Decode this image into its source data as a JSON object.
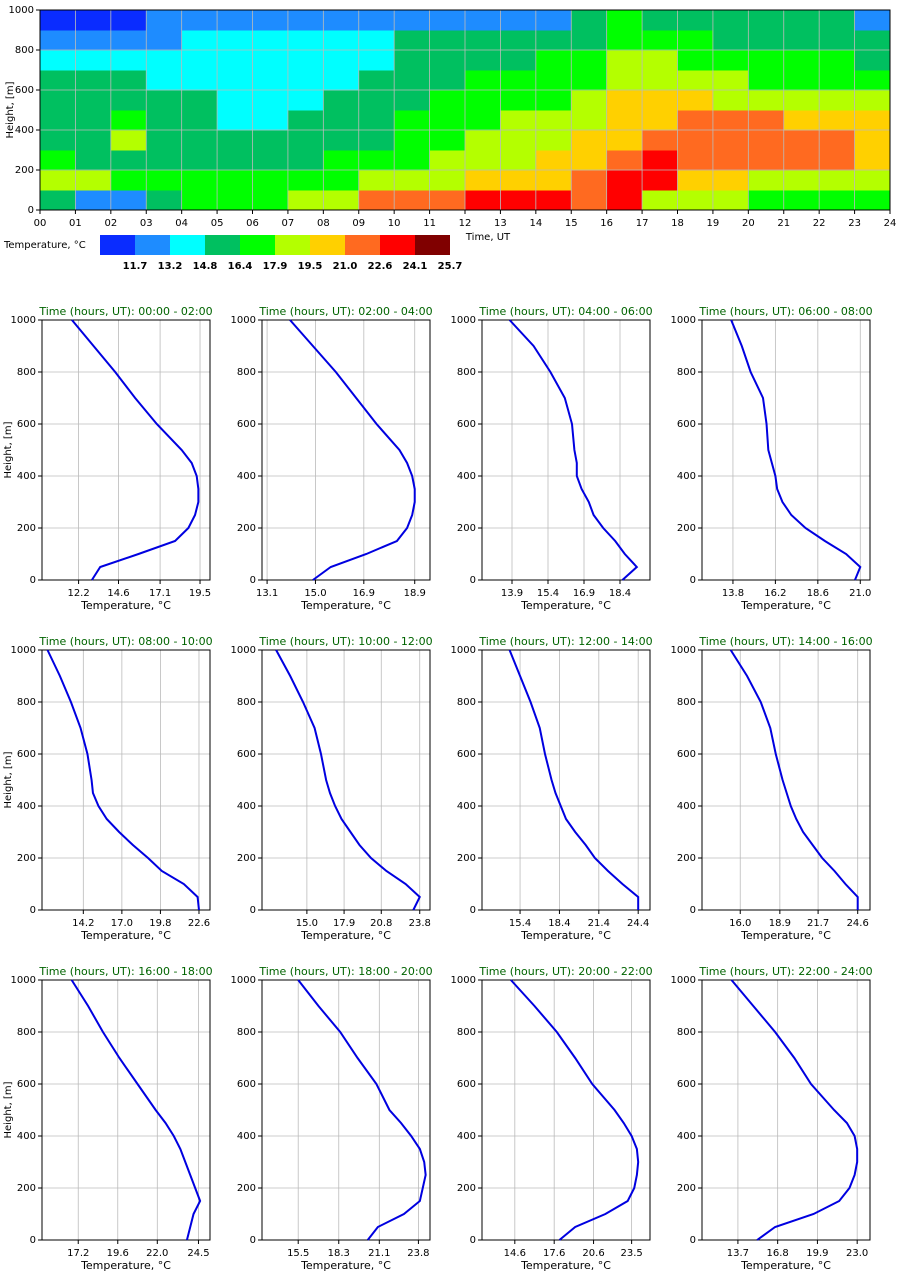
{
  "chart_data": [
    {
      "type": "heatmap",
      "xlabel": "Time, UT",
      "ylabel": "Height, [m]",
      "xlim": [
        0,
        24
      ],
      "ylim": [
        0,
        1000
      ],
      "xticks": [
        {
          "value": 0,
          "label": "00"
        },
        {
          "value": 1,
          "label": "01"
        },
        {
          "value": 2,
          "label": "02"
        },
        {
          "value": 3,
          "label": "03"
        },
        {
          "value": 4,
          "label": "04"
        },
        {
          "value": 5,
          "label": "05"
        },
        {
          "value": 6,
          "label": "06"
        },
        {
          "value": 7,
          "label": "07"
        },
        {
          "value": 8,
          "label": "08"
        },
        {
          "value": 9,
          "label": "09"
        },
        10,
        11,
        12,
        13,
        14,
        15,
        16,
        17,
        18,
        19,
        20,
        21,
        22,
        23,
        24
      ],
      "yticks": [
        0,
        200,
        400,
        600,
        800,
        1000
      ],
      "grid": true,
      "values": [
        [
          15.6,
          12.5,
          12.5,
          15.6,
          17.2,
          17.2,
          17.2,
          18.7,
          18.7,
          21.8,
          21.8,
          21.8,
          23.3,
          23.3,
          23.3,
          21.8,
          23.3,
          18.7,
          18.7,
          18.7,
          17.2,
          17.2,
          17.2,
          17.2
        ],
        [
          18.7,
          18.7,
          17.2,
          17.2,
          17.2,
          17.2,
          17.2,
          17.2,
          17.2,
          18.7,
          18.7,
          18.7,
          20.3,
          20.3,
          20.3,
          21.8,
          23.3,
          23.3,
          20.3,
          20.3,
          18.7,
          18.7,
          18.7,
          18.7
        ],
        [
          17.2,
          15.6,
          15.6,
          15.6,
          15.6,
          15.6,
          15.6,
          15.6,
          17.2,
          17.2,
          17.2,
          18.7,
          18.7,
          18.7,
          20.3,
          20.3,
          21.8,
          23.3,
          21.8,
          21.8,
          21.8,
          21.8,
          21.8,
          20.3
        ],
        [
          15.6,
          15.6,
          18.7,
          15.6,
          15.6,
          15.6,
          15.6,
          15.6,
          15.6,
          15.6,
          17.2,
          17.2,
          18.7,
          18.7,
          18.7,
          20.3,
          20.3,
          21.8,
          21.8,
          21.8,
          21.8,
          21.8,
          21.8,
          20.3
        ],
        [
          15.6,
          15.6,
          17.2,
          15.6,
          15.6,
          14,
          14,
          15.6,
          15.6,
          15.6,
          17.2,
          17.2,
          17.2,
          18.7,
          18.7,
          18.7,
          20.3,
          20.3,
          21.8,
          21.8,
          21.8,
          20.3,
          20.3,
          20.3
        ],
        [
          15.6,
          15.6,
          15.6,
          15.6,
          15.6,
          14,
          14,
          14,
          15.6,
          15.6,
          15.6,
          17.2,
          17.2,
          17.2,
          17.2,
          18.7,
          20.3,
          20.3,
          20.3,
          18.7,
          18.7,
          18.7,
          18.7,
          18.7
        ],
        [
          15.6,
          15.6,
          15.6,
          14,
          14,
          14,
          14,
          14,
          14,
          15.6,
          15.6,
          15.6,
          17.2,
          17.2,
          17.2,
          17.2,
          18.7,
          18.7,
          18.7,
          18.7,
          17.2,
          17.2,
          17.2,
          17.2
        ],
        [
          14,
          14,
          14,
          14,
          14,
          14,
          14,
          14,
          14,
          14,
          15.6,
          15.6,
          15.6,
          15.6,
          17.2,
          17.2,
          18.7,
          18.7,
          17.2,
          17.2,
          17.2,
          17.2,
          17.2,
          15.6
        ],
        [
          12.5,
          12.5,
          12.5,
          12.5,
          14,
          14,
          14,
          14,
          14,
          14,
          15.6,
          15.6,
          15.6,
          15.6,
          15.6,
          15.6,
          17.2,
          17.2,
          17.2,
          15.6,
          15.6,
          15.6,
          15.6,
          15.6
        ],
        [
          11,
          11,
          11,
          12.5,
          12.5,
          12.5,
          12.5,
          12.5,
          12.5,
          12.5,
          12.5,
          12.5,
          12.5,
          12.5,
          12.5,
          15.6,
          17.2,
          15.6,
          15.6,
          15.6,
          15.6,
          15.6,
          15.6,
          12.5
        ]
      ],
      "colorbar": {
        "label": "Temperature, °C",
        "colors": [
          "#0a2cff",
          "#1e8cff",
          "#00ffff",
          "#00c060",
          "#00ff00",
          "#b4ff00",
          "#ffd000",
          "#ff6a20",
          "#ff0000",
          "#800000"
        ],
        "ticks": [
          11.7,
          13.2,
          14.8,
          16.4,
          17.9,
          19.5,
          {
            "value": 21,
            "label": "21.0"
          },
          22.6,
          24.1,
          25.7
        ]
      }
    },
    {
      "type": "line",
      "title": "Time (hours, UT): 00:00 - 02:00",
      "xlabel": "Temperature, °C",
      "ylabel": "Height, [m]",
      "xlim": [
        10.0,
        20.1
      ],
      "xticks": [
        12.2,
        14.6,
        17.1,
        19.5
      ],
      "ylim": [
        0,
        1000
      ],
      "yticks": [
        0,
        200,
        400,
        600,
        800,
        1000
      ],
      "grid": true,
      "series": [
        {
          "color": "#0000e0",
          "x": [
            13.0,
            13.5,
            15.8,
            18.0,
            18.8,
            19.2,
            19.4,
            19.4,
            19.3,
            19.0,
            18.4,
            16.9,
            15.6,
            14.4,
            13.1,
            11.8
          ],
          "y": [
            0,
            50,
            100,
            150,
            200,
            250,
            300,
            350,
            400,
            450,
            500,
            600,
            700,
            800,
            900,
            1000
          ]
        }
      ]
    },
    {
      "type": "line",
      "title": "Time (hours, UT): 02:00 - 04:00",
      "xlabel": "Temperature, °C",
      "xlim": [
        12.9,
        19.5
      ],
      "xticks": [
        13.1,
        {
          "value": 15,
          "label": "15.0"
        },
        16.9,
        18.9
      ],
      "ylim": [
        0,
        1000
      ],
      "yticks": [
        0,
        200,
        400,
        600,
        800,
        1000
      ],
      "grid": true,
      "series": [
        {
          "color": "#0000e0",
          "x": [
            14.9,
            15.6,
            17.0,
            18.2,
            18.6,
            18.8,
            18.9,
            18.9,
            18.8,
            18.6,
            18.3,
            17.4,
            16.6,
            15.8,
            14.9,
            14.0
          ],
          "y": [
            0,
            50,
            100,
            150,
            200,
            250,
            300,
            350,
            400,
            450,
            500,
            600,
            700,
            800,
            900,
            1000
          ]
        }
      ]
    },
    {
      "type": "line",
      "title": "Time (hours, UT): 04:00 - 06:00",
      "xlabel": "Temperature, °C",
      "xlim": [
        12.65,
        19.65
      ],
      "xticks": [
        13.9,
        15.4,
        16.9,
        18.4
      ],
      "ylim": [
        0,
        1000
      ],
      "yticks": [
        0,
        200,
        400,
        600,
        800,
        1000
      ],
      "grid": true,
      "series": [
        {
          "color": "#0000e0",
          "x": [
            18.5,
            19.1,
            18.6,
            18.2,
            17.7,
            17.3,
            17.1,
            16.8,
            16.6,
            16.6,
            16.5,
            16.4,
            16.1,
            15.5,
            14.8,
            13.8
          ],
          "y": [
            0,
            50,
            100,
            150,
            200,
            250,
            300,
            350,
            400,
            450,
            500,
            600,
            700,
            800,
            900,
            1000
          ]
        }
      ]
    },
    {
      "type": "line",
      "title": "Time (hours, UT): 06:00 - 08:00",
      "xlabel": "Temperature, °C",
      "xlim": [
        12.05,
        21.55
      ],
      "xticks": [
        13.8,
        16.2,
        18.6,
        {
          "value": 21,
          "label": "21.0"
        }
      ],
      "ylim": [
        0,
        1000
      ],
      "yticks": [
        0,
        200,
        400,
        600,
        800,
        1000
      ],
      "grid": true,
      "series": [
        {
          "color": "#0000e0",
          "x": [
            20.7,
            21.0,
            20.2,
            19.0,
            17.9,
            17.1,
            16.6,
            16.3,
            16.2,
            16.0,
            15.8,
            15.7,
            15.5,
            14.8,
            14.3,
            13.7
          ],
          "y": [
            0,
            50,
            100,
            150,
            200,
            250,
            300,
            350,
            400,
            450,
            500,
            600,
            700,
            800,
            900,
            1000
          ]
        }
      ]
    },
    {
      "type": "line",
      "title": "Time (hours, UT): 08:00 - 10:00",
      "xlabel": "Temperature, °C",
      "ylabel": "Height, [m]",
      "xlim": [
        11.2,
        23.4
      ],
      "xticks": [
        14.2,
        {
          "value": 17,
          "label": "17.0"
        },
        19.8,
        22.6
      ],
      "ylim": [
        0,
        1000
      ],
      "yticks": [
        0,
        200,
        400,
        600,
        800,
        1000
      ],
      "grid": true,
      "series": [
        {
          "color": "#0000e0",
          "x": [
            22.6,
            22.5,
            21.5,
            19.9,
            18.9,
            17.8,
            16.8,
            15.9,
            15.3,
            14.9,
            14.8,
            14.5,
            14.0,
            13.3,
            12.5,
            11.6
          ],
          "y": [
            0,
            50,
            100,
            150,
            200,
            250,
            300,
            350,
            400,
            450,
            500,
            600,
            700,
            800,
            900,
            1000
          ]
        }
      ]
    },
    {
      "type": "line",
      "title": "Time (hours, UT): 10:00 - 12:00",
      "xlabel": "Temperature, °C",
      "xlim": [
        11.5,
        24.6
      ],
      "xticks": [
        {
          "value": 15,
          "label": "15.0"
        },
        17.9,
        20.8,
        23.8
      ],
      "ylim": [
        0,
        1000
      ],
      "yticks": [
        0,
        200,
        400,
        600,
        800,
        1000
      ],
      "grid": true,
      "series": [
        {
          "color": "#0000e0",
          "x": [
            23.3,
            23.8,
            22.7,
            21.2,
            20.0,
            19.1,
            18.4,
            17.7,
            17.2,
            16.8,
            16.5,
            16.1,
            15.6,
            14.7,
            13.7,
            12.6
          ],
          "y": [
            0,
            50,
            100,
            150,
            200,
            250,
            300,
            350,
            400,
            450,
            500,
            600,
            700,
            800,
            900,
            1000
          ]
        }
      ]
    },
    {
      "type": "line",
      "title": "Time (hours, UT): 12:00 - 14:00",
      "xlabel": "Temperature, °C",
      "xlim": [
        12.5,
        25.3
      ],
      "xticks": [
        15.4,
        18.4,
        21.4,
        24.4
      ],
      "ylim": [
        0,
        1000
      ],
      "yticks": [
        0,
        200,
        400,
        600,
        800,
        1000
      ],
      "grid": true,
      "series": [
        {
          "color": "#0000e0",
          "x": [
            24.4,
            24.4,
            23.2,
            22.1,
            21.1,
            20.4,
            19.6,
            18.9,
            18.5,
            18.1,
            17.8,
            17.3,
            16.9,
            16.2,
            15.4,
            14.6
          ],
          "y": [
            0,
            50,
            100,
            150,
            200,
            250,
            300,
            350,
            400,
            450,
            500,
            600,
            700,
            800,
            900,
            1000
          ]
        }
      ]
    },
    {
      "type": "line",
      "title": "Time (hours, UT): 14:00 - 16:00",
      "xlabel": "Temperature, °C",
      "xlim": [
        13.2,
        25.5
      ],
      "xticks": [
        {
          "value": 16,
          "label": "16.0"
        },
        18.9,
        21.7,
        24.6
      ],
      "ylim": [
        0,
        1000
      ],
      "yticks": [
        0,
        200,
        400,
        600,
        800,
        1000
      ],
      "grid": true,
      "series": [
        {
          "color": "#0000e0",
          "x": [
            24.6,
            24.6,
            23.7,
            22.9,
            22.0,
            21.3,
            20.6,
            20.1,
            19.7,
            19.4,
            19.1,
            18.6,
            18.2,
            17.5,
            16.5,
            15.3
          ],
          "y": [
            0,
            50,
            100,
            150,
            200,
            250,
            300,
            350,
            400,
            450,
            500,
            600,
            700,
            800,
            900,
            1000
          ]
        }
      ]
    },
    {
      "type": "line",
      "title": "Time (hours, UT): 16:00 - 18:00",
      "xlabel": "Temperature, °C",
      "ylabel": "Height, [m]",
      "xlim": [
        15.0,
        25.2
      ],
      "xticks": [
        17.2,
        19.6,
        {
          "value": 22,
          "label": "22.0"
        },
        24.5
      ],
      "ylim": [
        0,
        1000
      ],
      "yticks": [
        0,
        200,
        400,
        600,
        800,
        1000
      ],
      "grid": true,
      "series": [
        {
          "color": "#0000e0",
          "x": [
            23.8,
            24.0,
            24.2,
            24.6,
            24.3,
            24.0,
            23.7,
            23.4,
            23.0,
            22.5,
            21.9,
            20.8,
            19.7,
            18.7,
            17.8,
            16.8
          ],
          "y": [
            0,
            50,
            100,
            150,
            200,
            250,
            300,
            350,
            400,
            450,
            500,
            600,
            700,
            800,
            900,
            1000
          ]
        }
      ]
    },
    {
      "type": "line",
      "title": "Time (hours, UT): 18:00 - 20:00",
      "xlabel": "Temperature, °C",
      "xlim": [
        13.0,
        24.6
      ],
      "xticks": [
        15.5,
        18.3,
        21.1,
        23.8
      ],
      "ylim": [
        0,
        1000
      ],
      "yticks": [
        0,
        200,
        400,
        600,
        800,
        1000
      ],
      "grid": true,
      "series": [
        {
          "color": "#0000e0",
          "x": [
            20.3,
            21.0,
            22.8,
            23.9,
            24.1,
            24.3,
            24.2,
            23.9,
            23.3,
            22.6,
            21.8,
            20.9,
            19.6,
            18.4,
            16.9,
            15.5
          ],
          "y": [
            0,
            50,
            100,
            150,
            200,
            250,
            300,
            350,
            400,
            450,
            500,
            600,
            700,
            800,
            900,
            1000
          ]
        }
      ]
    },
    {
      "type": "line",
      "title": "Time (hours, UT): 20:00 - 22:00",
      "xlabel": "Temperature, °C",
      "xlim": [
        12.1,
        24.9
      ],
      "xticks": [
        14.6,
        17.6,
        20.6,
        23.5
      ],
      "ylim": [
        0,
        1000
      ],
      "yticks": [
        0,
        200,
        400,
        600,
        800,
        1000
      ],
      "grid": true,
      "series": [
        {
          "color": "#0000e0",
          "x": [
            18.0,
            19.2,
            21.5,
            23.2,
            23.7,
            23.9,
            24.0,
            23.9,
            23.5,
            22.9,
            22.2,
            20.5,
            19.2,
            17.8,
            16.1,
            14.3
          ],
          "y": [
            0,
            50,
            100,
            150,
            200,
            250,
            300,
            350,
            400,
            450,
            500,
            600,
            700,
            800,
            900,
            1000
          ]
        }
      ]
    },
    {
      "type": "line",
      "title": "Time (hours, UT): 22:00 - 24:00",
      "xlabel": "Temperature, °C",
      "xlim": [
        10.9,
        24.0
      ],
      "xticks": [
        13.7,
        16.8,
        19.9,
        {
          "value": 23,
          "label": "23.0"
        }
      ],
      "ylim": [
        0,
        1000
      ],
      "yticks": [
        0,
        200,
        400,
        600,
        800,
        1000
      ],
      "grid": true,
      "series": [
        {
          "color": "#0000e0",
          "x": [
            15.2,
            16.6,
            19.6,
            21.6,
            22.4,
            22.8,
            23.0,
            23.0,
            22.8,
            22.2,
            21.2,
            19.4,
            18.1,
            16.6,
            14.9,
            13.2
          ],
          "y": [
            0,
            50,
            100,
            150,
            200,
            250,
            300,
            350,
            400,
            450,
            500,
            600,
            700,
            800,
            900,
            1000
          ]
        }
      ]
    }
  ]
}
